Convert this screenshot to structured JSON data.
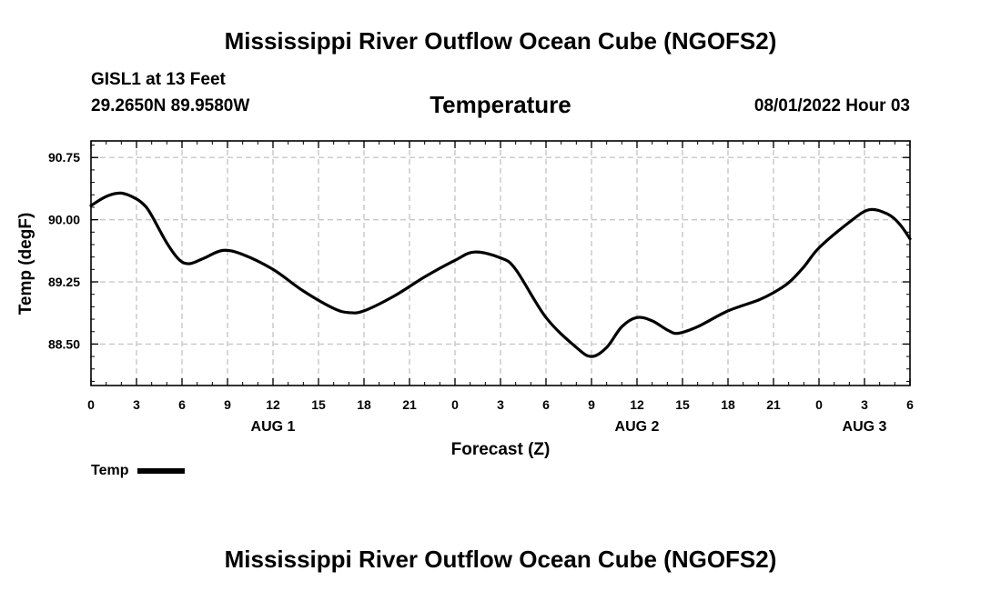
{
  "header": {
    "title": "Mississippi River Outflow Ocean Cube (NGOFS2)",
    "station_name": "GISL1 at 13 Feet",
    "coords": "29.2650N  89.9580W",
    "chart_title": "Temperature",
    "forecast_time": "08/01/2022 Hour 03"
  },
  "footer": {
    "title": "Mississippi River Outflow Ocean Cube (NGOFS2)"
  },
  "chart_data": {
    "type": "line",
    "title": "Temperature",
    "xlabel": "Forecast (Z)",
    "ylabel": "Temp (degF)",
    "xlim": [
      0,
      54
    ],
    "ylim": [
      88.0,
      90.95
    ],
    "y_ticks": [
      "90.75",
      "90.00",
      "89.25",
      "88.50"
    ],
    "y_tick_values": [
      90.75,
      90.0,
      89.25,
      88.5
    ],
    "x_ticks": [
      "0",
      "3",
      "6",
      "9",
      "12",
      "15",
      "18",
      "21",
      "0",
      "3",
      "6",
      "9",
      "12",
      "15",
      "18",
      "21",
      "0",
      "3",
      "6"
    ],
    "x_tick_hours": [
      0,
      3,
      6,
      9,
      12,
      15,
      18,
      21,
      24,
      27,
      30,
      33,
      36,
      39,
      42,
      45,
      48,
      51,
      54
    ],
    "day_labels": [
      {
        "label": "AUG 1",
        "hour": 12
      },
      {
        "label": "AUG 2",
        "hour": 36
      },
      {
        "label": "AUG 3",
        "hour": 51
      }
    ],
    "grid": true,
    "legend": {
      "label": "Temp",
      "placement": "bottom-left"
    },
    "series": [
      {
        "name": "Temp",
        "color": "#000000",
        "x": [
          0,
          1,
          2,
          3,
          3.6,
          4,
          5,
          5.8,
          6.5,
          7.5,
          8.7,
          10,
          12,
          14,
          16,
          17,
          18,
          20,
          22,
          24,
          25.3,
          27,
          28,
          30,
          32,
          33,
          34,
          35,
          36,
          37,
          38,
          38.7,
          40,
          42,
          44,
          45,
          46,
          47,
          48,
          50,
          51.3,
          52.5,
          53.3,
          54
        ],
        "values": [
          90.17,
          90.28,
          90.32,
          90.25,
          90.16,
          90.05,
          89.72,
          89.52,
          89.47,
          89.54,
          89.63,
          89.58,
          89.4,
          89.14,
          88.93,
          88.88,
          88.9,
          89.08,
          89.31,
          89.51,
          89.61,
          89.54,
          89.4,
          88.82,
          88.46,
          88.35,
          88.46,
          88.71,
          88.82,
          88.78,
          88.67,
          88.63,
          88.71,
          88.9,
          89.03,
          89.12,
          89.24,
          89.43,
          89.66,
          89.97,
          90.12,
          90.07,
          89.95,
          89.77
        ]
      }
    ]
  }
}
